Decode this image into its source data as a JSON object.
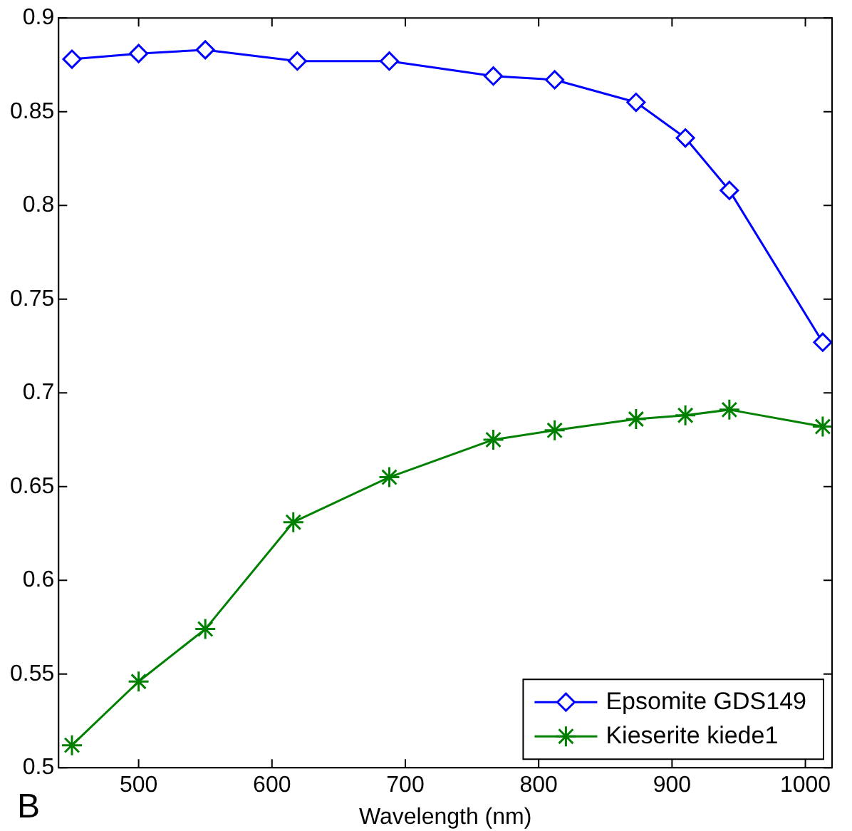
{
  "chart_data": {
    "type": "line",
    "xlabel": "Wavelength (nm)",
    "annotations": [
      "B"
    ],
    "legend": "bottom right",
    "grid": false,
    "xlim": [
      440,
      1020
    ],
    "xticks": [
      500,
      600,
      700,
      800,
      900,
      1000
    ],
    "ylim": [
      0.5,
      0.9
    ],
    "yticks": [
      0.5,
      0.55,
      0.6,
      0.65,
      0.7,
      0.75,
      0.8,
      0.85,
      0.9
    ],
    "series": [
      {
        "name": "Epsomite GDS149",
        "color": "#0000ff",
        "marker": "diamond",
        "x": [
          450,
          500,
          550,
          619,
          688,
          766,
          812,
          873,
          910,
          943,
          1013
        ],
        "values": [
          0.878,
          0.881,
          0.883,
          0.877,
          0.877,
          0.869,
          0.867,
          0.855,
          0.836,
          0.808,
          0.727
        ]
      },
      {
        "name": "Kieserite kiede1",
        "color": "#008000",
        "marker": "cross",
        "x": [
          450,
          500,
          550,
          616,
          688,
          766,
          812,
          873,
          910,
          943,
          1013
        ],
        "values": [
          0.512,
          0.546,
          0.574,
          0.631,
          0.655,
          0.675,
          0.68,
          0.686,
          0.688,
          0.691,
          0.682
        ]
      }
    ]
  }
}
